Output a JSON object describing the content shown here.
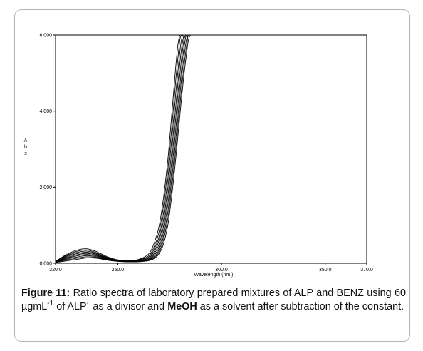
{
  "chart_data": {
    "type": "line",
    "title": "",
    "xlabel": "Wavelength (nm.)",
    "ylabel": "Abs.",
    "ylabel_letters": [
      "A",
      "b",
      "s",
      "."
    ],
    "xlim": [
      220.0,
      370.0
    ],
    "ylim": [
      0.0,
      6.0
    ],
    "xticks": [
      "220.0",
      "250.0",
      "300.0",
      "350.0",
      "370.0"
    ],
    "xtick_values": [
      220.0,
      250.0,
      300.0,
      350.0,
      370.0
    ],
    "yticks": [
      "0.000",
      "2.000",
      "4.000",
      "6.000"
    ],
    "ytick_values": [
      0.0,
      2.0,
      4.0,
      6.0
    ],
    "grid": false,
    "legend": "none",
    "line_color": "#000000",
    "curve_count": 9,
    "series": [
      {
        "x": [
          220,
          225,
          230,
          235,
          240,
          245,
          250,
          255,
          260,
          265,
          268,
          270,
          272,
          274,
          275,
          276,
          277,
          278,
          279,
          280,
          281,
          282
        ],
        "values": [
          0.05,
          0.22,
          0.34,
          0.38,
          0.3,
          0.17,
          0.09,
          0.08,
          0.1,
          0.25,
          0.6,
          1.0,
          1.7,
          2.65,
          3.25,
          3.9,
          4.55,
          5.2,
          5.75,
          6.0,
          6.0,
          6.0
        ]
      },
      {
        "x": [
          220,
          225,
          230,
          235,
          240,
          245,
          250,
          255,
          260,
          265,
          268,
          270,
          272,
          274,
          275,
          276,
          277,
          278,
          279,
          280,
          281,
          282
        ],
        "values": [
          0.05,
          0.2,
          0.31,
          0.35,
          0.27,
          0.15,
          0.08,
          0.07,
          0.09,
          0.2,
          0.5,
          0.85,
          1.5,
          2.4,
          2.95,
          3.55,
          4.2,
          4.85,
          5.4,
          5.9,
          6.0,
          6.0
        ]
      },
      {
        "x": [
          220,
          225,
          230,
          235,
          240,
          245,
          250,
          255,
          260,
          265,
          268,
          270,
          272,
          274,
          275,
          276,
          277,
          278,
          279,
          280,
          281,
          282,
          283
        ],
        "values": [
          0.04,
          0.18,
          0.28,
          0.32,
          0.25,
          0.14,
          0.08,
          0.07,
          0.08,
          0.17,
          0.42,
          0.72,
          1.3,
          2.15,
          2.7,
          3.25,
          3.85,
          4.5,
          5.05,
          5.6,
          5.95,
          6.0,
          6.0
        ]
      },
      {
        "x": [
          220,
          225,
          230,
          235,
          240,
          245,
          250,
          255,
          260,
          265,
          268,
          270,
          272,
          274,
          275,
          276,
          277,
          278,
          279,
          280,
          281,
          282,
          283
        ],
        "values": [
          0.04,
          0.16,
          0.25,
          0.29,
          0.23,
          0.13,
          0.07,
          0.06,
          0.07,
          0.14,
          0.35,
          0.62,
          1.12,
          1.92,
          2.42,
          2.95,
          3.55,
          4.15,
          4.75,
          5.3,
          5.75,
          6.0,
          6.0
        ]
      },
      {
        "x": [
          220,
          225,
          230,
          235,
          240,
          245,
          250,
          255,
          260,
          265,
          268,
          270,
          272,
          274,
          275,
          276,
          277,
          278,
          279,
          280,
          281,
          282,
          283,
          284
        ],
        "values": [
          0.04,
          0.14,
          0.22,
          0.26,
          0.21,
          0.12,
          0.07,
          0.06,
          0.07,
          0.12,
          0.29,
          0.52,
          0.96,
          1.7,
          2.17,
          2.68,
          3.25,
          3.85,
          4.45,
          5.0,
          5.5,
          5.9,
          6.0,
          6.0
        ]
      },
      {
        "x": [
          220,
          225,
          230,
          235,
          240,
          245,
          250,
          255,
          260,
          265,
          268,
          270,
          272,
          274,
          275,
          276,
          277,
          278,
          279,
          280,
          281,
          282,
          283,
          284
        ],
        "values": [
          0.03,
          0.12,
          0.19,
          0.23,
          0.19,
          0.11,
          0.06,
          0.05,
          0.06,
          0.1,
          0.24,
          0.44,
          0.82,
          1.5,
          1.93,
          2.43,
          2.98,
          3.55,
          4.15,
          4.7,
          5.25,
          5.7,
          6.0,
          6.0
        ]
      },
      {
        "x": [
          220,
          225,
          230,
          235,
          240,
          245,
          250,
          255,
          260,
          265,
          268,
          270,
          272,
          274,
          275,
          276,
          277,
          278,
          279,
          280,
          281,
          282,
          283,
          284,
          285
        ],
        "values": [
          0.03,
          0.1,
          0.16,
          0.2,
          0.17,
          0.1,
          0.06,
          0.05,
          0.05,
          0.09,
          0.2,
          0.37,
          0.7,
          1.3,
          1.72,
          2.2,
          2.72,
          3.28,
          3.85,
          4.45,
          5.0,
          5.45,
          5.85,
          6.0,
          6.0
        ]
      },
      {
        "x": [
          220,
          225,
          230,
          235,
          240,
          245,
          250,
          255,
          260,
          265,
          268,
          270,
          272,
          274,
          275,
          276,
          277,
          278,
          279,
          280,
          281,
          282,
          283,
          284,
          285
        ],
        "values": [
          0.03,
          0.08,
          0.13,
          0.17,
          0.15,
          0.09,
          0.05,
          0.04,
          0.05,
          0.08,
          0.17,
          0.31,
          0.6,
          1.13,
          1.52,
          1.98,
          2.48,
          3.02,
          3.6,
          4.18,
          4.72,
          5.22,
          5.65,
          6.0,
          6.0
        ]
      },
      {
        "x": [
          220,
          225,
          230,
          235,
          240,
          245,
          250,
          255,
          260,
          265,
          268,
          270,
          272,
          274,
          275,
          276,
          277,
          278,
          279,
          280,
          281,
          282,
          283,
          284,
          285,
          286
        ],
        "values": [
          0.02,
          0.06,
          0.1,
          0.14,
          0.13,
          0.08,
          0.05,
          0.04,
          0.04,
          0.07,
          0.14,
          0.26,
          0.5,
          0.96,
          1.33,
          1.76,
          2.25,
          2.78,
          3.35,
          3.92,
          4.48,
          5.0,
          5.45,
          5.85,
          6.0,
          6.0
        ]
      }
    ]
  },
  "caption": {
    "label": "Figure 11:",
    "text_1": " Ratio spectra of laboratory prepared mixtures of ALP and BENZ using 60 µgmL",
    "superscript": "-1",
    "text_2": " of ALP´ as a divisor and ",
    "solvent": "MeOH",
    "text_3": " as a solvent after subtraction of the constant."
  }
}
